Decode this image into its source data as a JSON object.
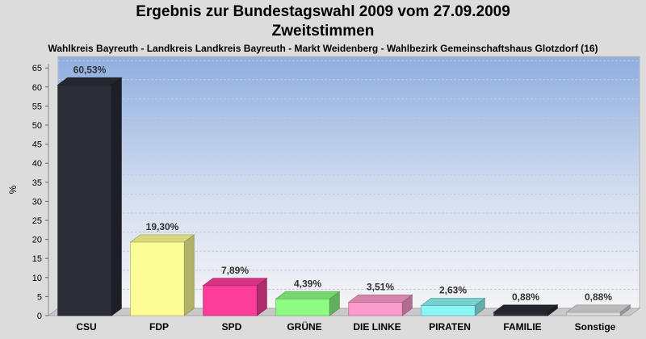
{
  "chart_data": {
    "type": "bar",
    "title": "Ergebnis zur Bundestagswahl 2009 vom 27.09.2009",
    "subtitle": "Zweitstimmen",
    "caption": "Wahlkreis Bayreuth - Landkreis Landkreis Bayreuth - Markt Weidenberg - Wahlbezirk Gemeinschaftshaus Glotzdorf (16)",
    "ylabel": "%",
    "ylim": [
      0,
      68
    ],
    "yticks": [
      0,
      5,
      10,
      15,
      20,
      25,
      30,
      35,
      40,
      45,
      50,
      55,
      60,
      65
    ],
    "grid": true,
    "legend": "none",
    "categories": [
      "CSU",
      "FDP",
      "SPD",
      "GRÜNE",
      "DIE LINKE",
      "PIRATEN",
      "FAMILIE",
      "Sonstige"
    ],
    "values": [
      60.53,
      19.3,
      7.89,
      4.39,
      3.51,
      2.63,
      0.88,
      0.88
    ],
    "value_labels": [
      "60,53%",
      "19,30%",
      "7,89%",
      "4,39%",
      "3,51%",
      "2,63%",
      "0,88%",
      "0,88%"
    ],
    "colors": [
      "#2b2d36",
      "#fdfd96",
      "#fc3d9a",
      "#8cfc82",
      "#fc9ccc",
      "#8cf6f6",
      "#2b2d36",
      "#dcdcdc"
    ]
  }
}
